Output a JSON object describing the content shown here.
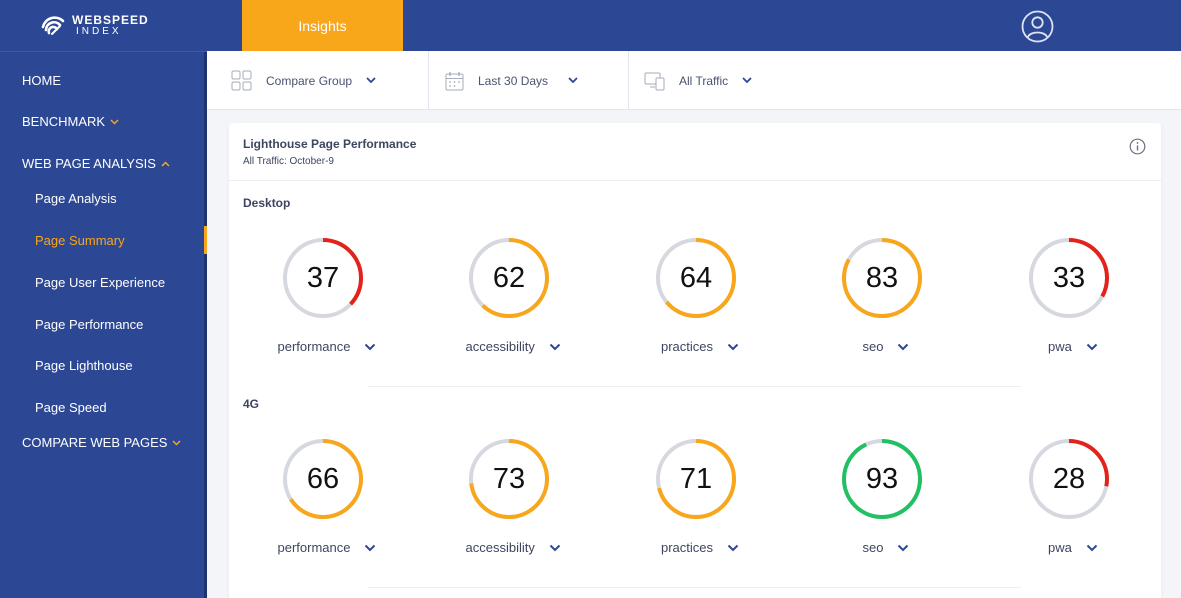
{
  "brand": {
    "line1": "WEBSPEED",
    "line2": "INDEX"
  },
  "header": {
    "active_tab": "Insights"
  },
  "sidebar": {
    "home": "HOME",
    "benchmark": "BENCHMARK",
    "web_page_analysis": "WEB PAGE ANALYSIS",
    "sub_items": [
      "Page Analysis",
      "Page Summary",
      "Page User Experience",
      "Page Performance",
      "Page Lighthouse",
      "Page Speed"
    ],
    "active_sub_item": "Page Summary",
    "compare_web_pages": "COMPARE WEB PAGES"
  },
  "filters": {
    "group": "Compare Group",
    "range": "Last 30 Days",
    "traffic": "All Traffic"
  },
  "card": {
    "title": "Lighthouse Page Performance",
    "subtitle": "All Traffic: October-9"
  },
  "sections": [
    {
      "title": "Desktop",
      "metrics": [
        {
          "label": "performance",
          "score": 37,
          "color": "#e3231b"
        },
        {
          "label": "accessibility",
          "score": 62,
          "color": "#f8a61a"
        },
        {
          "label": "practices",
          "score": 64,
          "color": "#f8a61a"
        },
        {
          "label": "seo",
          "score": 83,
          "color": "#f8a61a"
        },
        {
          "label": "pwa",
          "score": 33,
          "color": "#e3231b"
        }
      ]
    },
    {
      "title": "4G",
      "metrics": [
        {
          "label": "performance",
          "score": 66,
          "color": "#f8a61a"
        },
        {
          "label": "accessibility",
          "score": 73,
          "color": "#f8a61a"
        },
        {
          "label": "practices",
          "score": 71,
          "color": "#f8a61a"
        },
        {
          "label": "seo",
          "score": 93,
          "color": "#21c063"
        },
        {
          "label": "pwa",
          "score": 28,
          "color": "#e3231b"
        }
      ]
    }
  ],
  "colors": {
    "brand_blue": "#2c4794",
    "accent_orange": "#f8a61a",
    "gauge_track": "#d5d8de"
  }
}
